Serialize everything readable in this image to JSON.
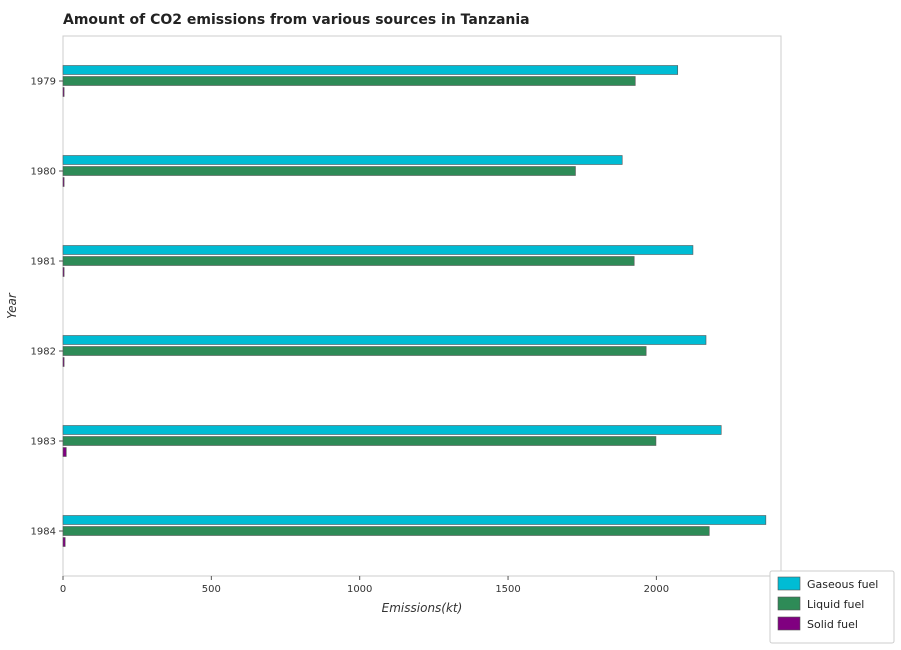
{
  "chart_data": {
    "type": "bar",
    "orientation": "horizontal",
    "title": "Amount of CO2 emissions from various sources in Tanzania",
    "xlabel": "Emissions(kt)",
    "ylabel": "Year",
    "xlim": [
      0,
      2420
    ],
    "x_ticks": [
      "0",
      "500",
      "1000",
      "1500",
      "2000"
    ],
    "x_tick_values": [
      0,
      500,
      1000,
      1500,
      2000
    ],
    "categories": [
      "1979",
      "1980",
      "1981",
      "1982",
      "1983",
      "1984"
    ],
    "series": [
      {
        "name": "Gaseous fuel",
        "color": "#00bcd4",
        "values": [
          2071.9,
          1884.8,
          2123.2,
          2167.2,
          2218.5,
          2368.9
        ]
      },
      {
        "name": "Liquid fuel",
        "color": "#2e8b57",
        "values": [
          1928.8,
          1727.2,
          1925.2,
          1965.5,
          1998.5,
          2178.2
        ]
      },
      {
        "name": "Solid fuel",
        "color": "#800080",
        "values": [
          3.7,
          3.7,
          3.7,
          3.7,
          11.0,
          7.3
        ]
      }
    ],
    "grid": false,
    "legend_position": "bottom-right"
  }
}
